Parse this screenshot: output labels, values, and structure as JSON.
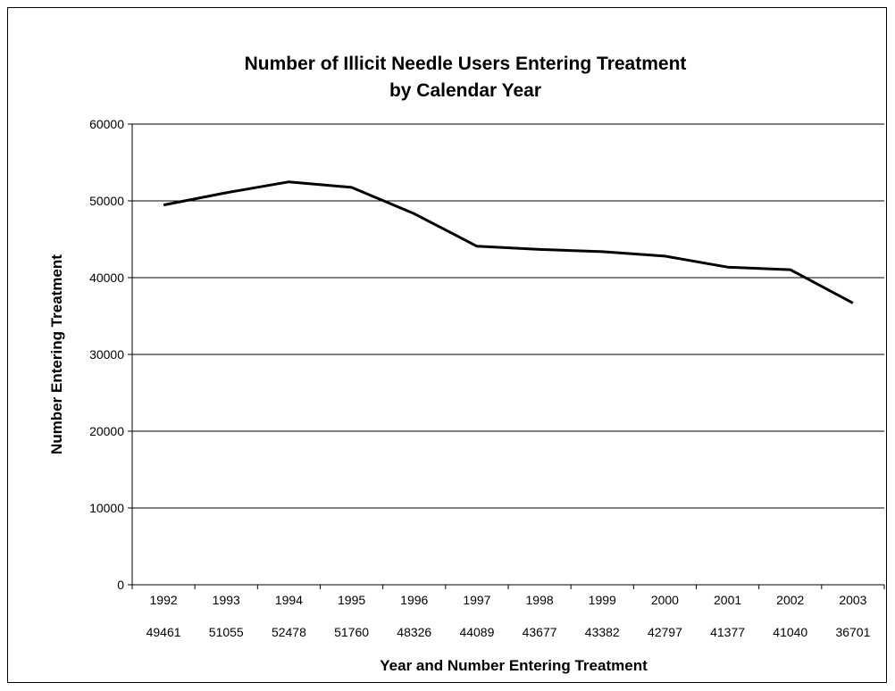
{
  "chart_data": {
    "type": "line",
    "title": [
      "Number of Illicit Needle Users Entering Treatment",
      "by Calendar Year"
    ],
    "xlabel": "Year and Number Entering Treatment",
    "ylabel": "Number Entering Treatment",
    "categories": [
      "1992",
      "1993",
      "1994",
      "1995",
      "1996",
      "1997",
      "1998",
      "1999",
      "2000",
      "2001",
      "2002",
      "2003"
    ],
    "category_values_row": [
      "49461",
      "51055",
      "52478",
      "51760",
      "48326",
      "44089",
      "43677",
      "43382",
      "42797",
      "41377",
      "41040",
      "36701"
    ],
    "series": [
      {
        "values": [
          49461,
          51055,
          52478,
          51760,
          48326,
          44089,
          43677,
          43382,
          42797,
          41377,
          41040,
          36701
        ],
        "color": "#000000"
      }
    ],
    "ylim": [
      0,
      60000
    ],
    "yticks": [
      "0",
      "10000",
      "20000",
      "30000",
      "40000",
      "50000",
      "60000"
    ],
    "grid": true,
    "legend": "none"
  }
}
